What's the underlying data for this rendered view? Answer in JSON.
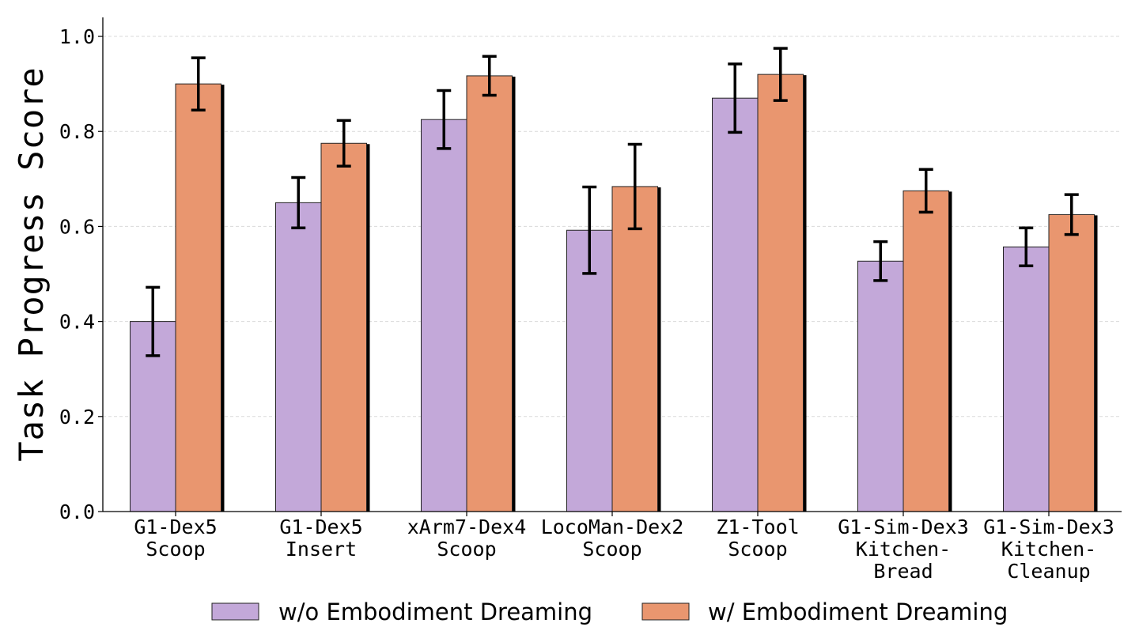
{
  "chart_data": {
    "type": "bar",
    "ylabel": "Task Progress Score",
    "xlabel": "",
    "ylim": [
      0,
      1.04
    ],
    "yticks": [
      "0.0",
      "0.2",
      "0.4",
      "0.6",
      "0.8",
      "1.0"
    ],
    "ytick_values": [
      0.0,
      0.2,
      0.4,
      0.6,
      0.8,
      1.0
    ],
    "grid": "horizontal dashed",
    "legend_position": "bottom",
    "categories": [
      [
        "G1-Dex5",
        "Scoop"
      ],
      [
        "G1-Dex5",
        "Insert"
      ],
      [
        "xArm7-Dex4",
        "Scoop"
      ],
      [
        "LocoMan-Dex2",
        "Scoop"
      ],
      [
        "Z1-Tool",
        "Scoop"
      ],
      [
        "G1-Sim-Dex3",
        "Kitchen-",
        "Bread"
      ],
      [
        "G1-Sim-Dex3",
        "Kitchen-",
        "Cleanup"
      ]
    ],
    "series": [
      {
        "name": "w/o Embodiment Dreaming",
        "color": "#C3A8D9",
        "values": [
          0.4,
          0.65,
          0.825,
          0.592,
          0.87,
          0.527,
          0.557
        ],
        "errors": [
          0.072,
          0.053,
          0.061,
          0.091,
          0.072,
          0.041,
          0.04
        ]
      },
      {
        "name": "w/ Embodiment Dreaming",
        "color": "#E9966F",
        "values": [
          0.9,
          0.775,
          0.917,
          0.684,
          0.92,
          0.675,
          0.625
        ],
        "errors": [
          0.055,
          0.048,
          0.041,
          0.089,
          0.055,
          0.045,
          0.042
        ]
      }
    ]
  }
}
